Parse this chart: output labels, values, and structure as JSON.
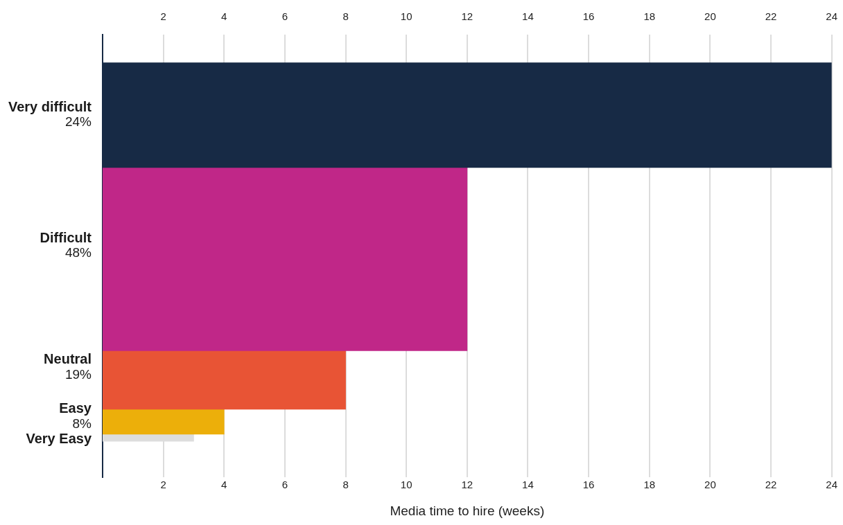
{
  "chart_data": {
    "type": "bar",
    "orientation": "horizontal",
    "categories": [
      "Very difficult\n24%",
      "Difficult\n48%",
      "Neutral\n19%",
      "Easy\n8%",
      "Very Easy"
    ],
    "values": [
      24,
      12,
      8,
      4,
      3
    ],
    "colors": [
      "#172a45",
      "#c02788",
      "#e85435",
      "#ecaf0a",
      "#dddddd"
    ],
    "xlabel": "Media time to hire (weeks)",
    "xlim": [
      0,
      24
    ],
    "xticks": [
      2,
      4,
      6,
      8,
      10,
      12,
      14,
      16,
      18,
      20,
      22,
      24
    ],
    "x2lim": [
      0,
      24
    ],
    "x2ticks": [
      2,
      4,
      6,
      8,
      10,
      12,
      14,
      16,
      18,
      20,
      22,
      24
    ],
    "grid": "x",
    "legend": false
  }
}
